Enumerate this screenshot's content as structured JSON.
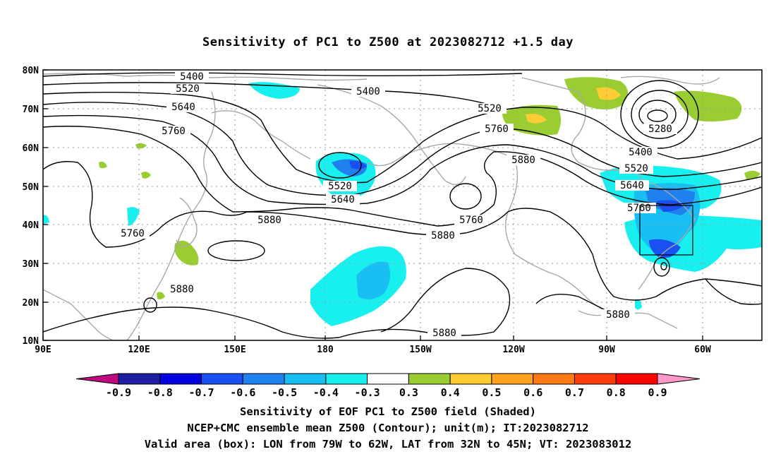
{
  "title": "Sensitivity of PC1 to Z500 at 2023082712 +1.5 day",
  "lat_labels": [
    "80N",
    "70N",
    "60N",
    "50N",
    "40N",
    "30N",
    "20N",
    "10N"
  ],
  "lon_labels": [
    "90E",
    "120E",
    "150E",
    "180",
    "150W",
    "120W",
    "90W",
    "60W"
  ],
  "contour_labels": [
    "5400",
    "5520",
    "5640",
    "5760",
    "5400",
    "5520",
    "5760",
    "5880",
    "5520",
    "5640",
    "5880",
    "5760",
    "5880",
    "5880",
    "5880",
    "5280",
    "5400",
    "5520",
    "5640",
    "5760",
    "5880",
    "5760",
    "5880"
  ],
  "colorbar": {
    "labels": [
      "-0.9",
      "-0.8",
      "-0.7",
      "-0.6",
      "-0.5",
      "-0.4",
      "-0.3",
      "0.3",
      "0.4",
      "0.5",
      "0.6",
      "0.7",
      "0.8",
      "0.9"
    ],
    "colors": [
      "#c0087f",
      "#1e1ea0",
      "#0000e0",
      "#1a50f0",
      "#2080f0",
      "#19bff2",
      "#18f0f0",
      "#ffffff",
      "#9acd32",
      "#ffcc33",
      "#ffa21e",
      "#ff7a14",
      "#ff3c0a",
      "#ff0000",
      "#ff99cc"
    ]
  },
  "box": {
    "lon_from": "79W",
    "lon_to": "62W",
    "lat_from": "32N",
    "lat_to": "45N"
  },
  "captions": {
    "line1": "Sensitivity of EOF PC1 to Z500 field (Shaded)",
    "line2": "NCEP+CMC ensemble mean Z500 (Contour); unit(m); IT:2023082712",
    "line3": "Valid area (box): LON from 79W to 62W, LAT from 32N to 45N; VT: 2023083012"
  }
}
